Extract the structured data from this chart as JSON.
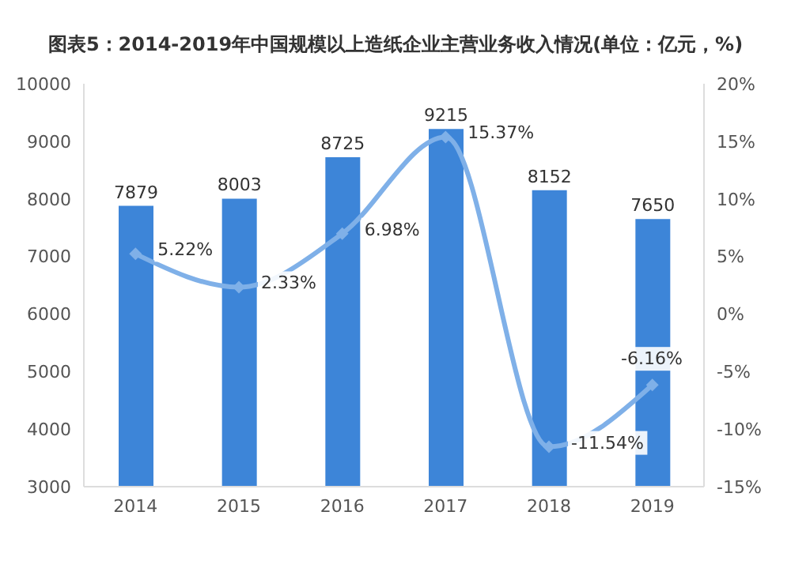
{
  "chart_data": {
    "type": "bar",
    "title": "图表5：2014-2019年中国规模以上造纸企业主营业务收入情况(单位：亿元，%)",
    "categories": [
      "2014",
      "2015",
      "2016",
      "2017",
      "2018",
      "2019"
    ],
    "series": [
      {
        "color": "#3d85d8",
        "values": [
          7879,
          8003,
          8725,
          9215,
          8152,
          7650
        ],
        "value_labels": [
          "7879",
          "8003",
          "8725",
          "9215",
          "8152",
          "7650"
        ]
      },
      {
        "type": "line",
        "axis": "y2",
        "color": "#7fb0e8",
        "values": [
          5.22,
          2.33,
          6.98,
          15.37,
          -11.54,
          -6.16
        ],
        "value_labels": [
          "5.22%",
          "2.33%",
          "6.98%",
          "15.37%",
          "-11.54%",
          "-6.16%"
        ]
      }
    ],
    "ylim": [
      3000,
      10000
    ],
    "yticks": [
      3000,
      4000,
      5000,
      6000,
      7000,
      8000,
      9000,
      10000
    ],
    "y2lim": [
      -15,
      20
    ],
    "y2ticks": [
      {
        "value": -15,
        "label": "-15%"
      },
      {
        "value": -10,
        "label": "-10%"
      },
      {
        "value": -5,
        "label": "-5%"
      },
      {
        "value": 0,
        "label": "0%"
      },
      {
        "value": 5,
        "label": "5%"
      },
      {
        "value": 10,
        "label": "10%"
      },
      {
        "value": 15,
        "label": "15%"
      },
      {
        "value": 20,
        "label": "20%"
      }
    ],
    "marker": "diamond",
    "grid": false,
    "legend": false
  }
}
